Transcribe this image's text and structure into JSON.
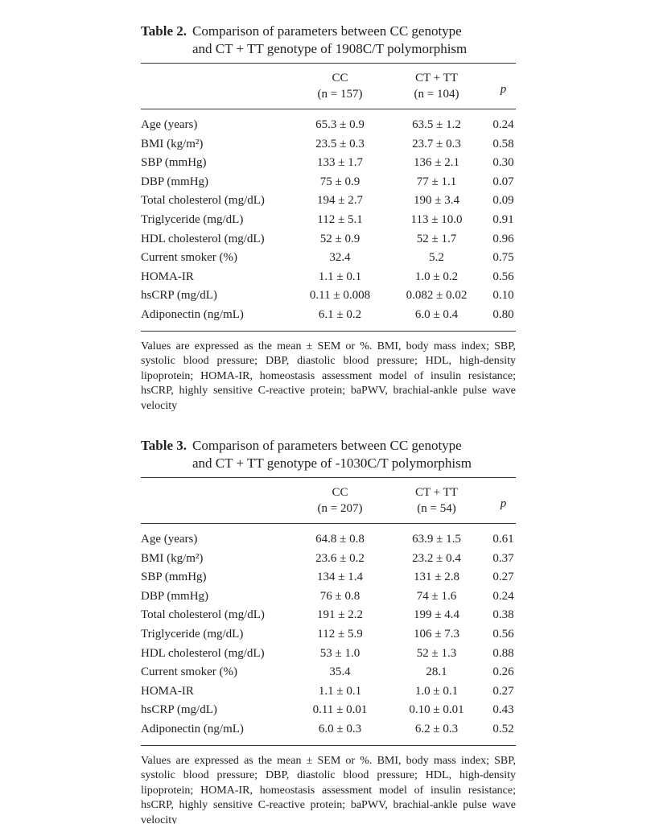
{
  "tables": [
    {
      "label": "Table 2.",
      "caption": [
        "Comparison of parameters between CC genotype",
        "and CT + TT genotype of 1908C/T polymorphism"
      ],
      "header": [
        [
          "CC",
          "(n = 157)"
        ],
        [
          "CT + TT",
          "(n = 104)"
        ],
        [
          "p"
        ]
      ],
      "rows": [
        [
          "Age (years)",
          "65.3 ± 0.9",
          "63.5 ± 1.2",
          "0.24"
        ],
        [
          "BMI (kg/m²)",
          "23.5 ± 0.3",
          "23.7 ± 0.3",
          "0.58"
        ],
        [
          "SBP (mmHg)",
          "133 ± 1.7",
          "136 ± 2.1",
          "0.30"
        ],
        [
          "DBP (mmHg)",
          "75 ± 0.9",
          "77 ± 1.1",
          "0.07"
        ],
        [
          "Total cholesterol (mg/dL)",
          "194 ± 2.7",
          "190 ± 3.4",
          "0.09"
        ],
        [
          "Triglyceride (mg/dL)",
          "112 ± 5.1",
          "113 ± 10.0",
          "0.91"
        ],
        [
          "HDL cholesterol (mg/dL)",
          "52 ± 0.9",
          "52 ± 1.7",
          "0.96"
        ],
        [
          "Current smoker (%)",
          "32.4",
          "5.2",
          "0.75"
        ],
        [
          "HOMA-IR",
          "1.1 ± 0.1",
          "1.0 ± 0.2",
          "0.56"
        ],
        [
          "hsCRP (mg/dL)",
          "0.11 ± 0.008",
          "0.082 ± 0.02",
          "0.10"
        ],
        [
          "Adiponectin (ng/mL)",
          "6.1 ± 0.2",
          "6.0 ± 0.4",
          "0.80"
        ]
      ],
      "footnote": "Values are expressed as the mean ± SEM or %. BMI, body mass index; SBP, systolic blood pressure; DBP, diastolic blood pressure; HDL, high-density lipoprotein; HOMA-IR, homeostasis assessment model of insulin resistance; hsCRP, highly sensitive C-reactive protein; baPWV, brachial-ankle pulse wave velocity"
    },
    {
      "label": "Table 3.",
      "caption": [
        "Comparison of parameters between CC genotype",
        "and CT + TT genotype of -1030C/T polymorphism"
      ],
      "header": [
        [
          "CC",
          "(n = 207)"
        ],
        [
          "CT + TT",
          "(n = 54)"
        ],
        [
          "p"
        ]
      ],
      "rows": [
        [
          "Age (years)",
          "64.8 ± 0.8",
          "63.9 ± 1.5",
          "0.61"
        ],
        [
          "BMI (kg/m²)",
          "23.6 ± 0.2",
          "23.2 ± 0.4",
          "0.37"
        ],
        [
          "SBP (mmHg)",
          "134 ± 1.4",
          "131 ± 2.8",
          "0.27"
        ],
        [
          "DBP (mmHg)",
          "76 ± 0.8",
          "74 ± 1.6",
          "0.24"
        ],
        [
          "Total cholesterol (mg/dL)",
          "191 ± 2.2",
          "199 ± 4.4",
          "0.38"
        ],
        [
          "Triglyceride (mg/dL)",
          "112 ± 5.9",
          "106 ± 7.3",
          "0.56"
        ],
        [
          "HDL cholesterol (mg/dL)",
          "53 ± 1.0",
          "52 ± 1.3",
          "0.88"
        ],
        [
          "Current smoker (%)",
          "35.4",
          "28.1",
          "0.26"
        ],
        [
          "HOMA-IR",
          "1.1 ± 0.1",
          "1.0 ± 0.1",
          "0.27"
        ],
        [
          "hsCRP (mg/dL)",
          "0.11 ± 0.01",
          "0.10 ± 0.01",
          "0.43"
        ],
        [
          "Adiponectin (ng/mL)",
          "6.0 ± 0.3",
          "6.2 ± 0.3",
          "0.52"
        ]
      ],
      "footnote": "Values are expressed as the mean ± SEM or %. BMI, body mass index; SBP, systolic blood pressure; DBP, diastolic blood pressure; HDL, high-density lipoprotein; HOMA-IR, homeostasis assessment model of insulin resistance; hsCRP, highly sensitive C-reactive protein; baPWV, brachial-ankle pulse wave velocity"
    }
  ]
}
